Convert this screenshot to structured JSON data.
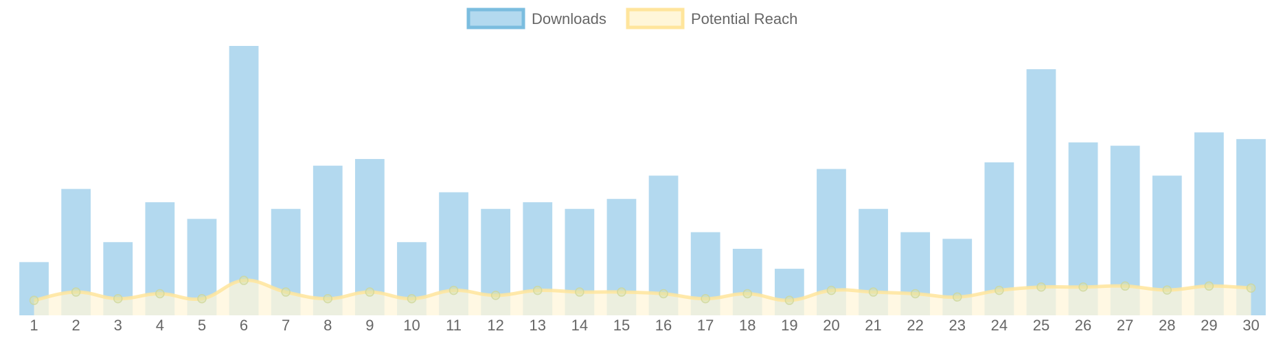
{
  "chart_data": {
    "type": "bar",
    "categories": [
      "1",
      "2",
      "3",
      "4",
      "5",
      "6",
      "7",
      "8",
      "9",
      "10",
      "11",
      "12",
      "13",
      "14",
      "15",
      "16",
      "17",
      "18",
      "19",
      "20",
      "21",
      "22",
      "23",
      "24",
      "25",
      "26",
      "27",
      "28",
      "29",
      "30"
    ],
    "series": [
      {
        "name": "Downloads",
        "type": "bar",
        "color": "#b3d9ef",
        "border_color": "#7bbddf",
        "values": [
          16,
          38,
          22,
          34,
          29,
          81,
          32,
          45,
          47,
          22,
          37,
          32,
          34,
          32,
          35,
          42,
          25,
          20,
          14,
          44,
          32,
          25,
          23,
          46,
          74,
          52,
          51,
          42,
          55,
          53
        ]
      },
      {
        "name": "Potential Reach",
        "type": "area",
        "color": "#fff6d9",
        "border_color": "#ffe59c",
        "values": [
          4.5,
          7,
          5,
          6.5,
          5,
          10.5,
          7,
          5,
          7,
          5,
          7.5,
          6,
          7.5,
          7,
          7,
          6.5,
          5,
          6.5,
          4.5,
          7.5,
          7,
          6.5,
          5.5,
          7.5,
          8.5,
          8.5,
          8.8,
          7.6,
          8.8,
          8.2
        ]
      }
    ],
    "ylim": [
      0,
      81
    ],
    "grid": false,
    "legend_position": "top-center",
    "xlabel": "",
    "ylabel": ""
  }
}
